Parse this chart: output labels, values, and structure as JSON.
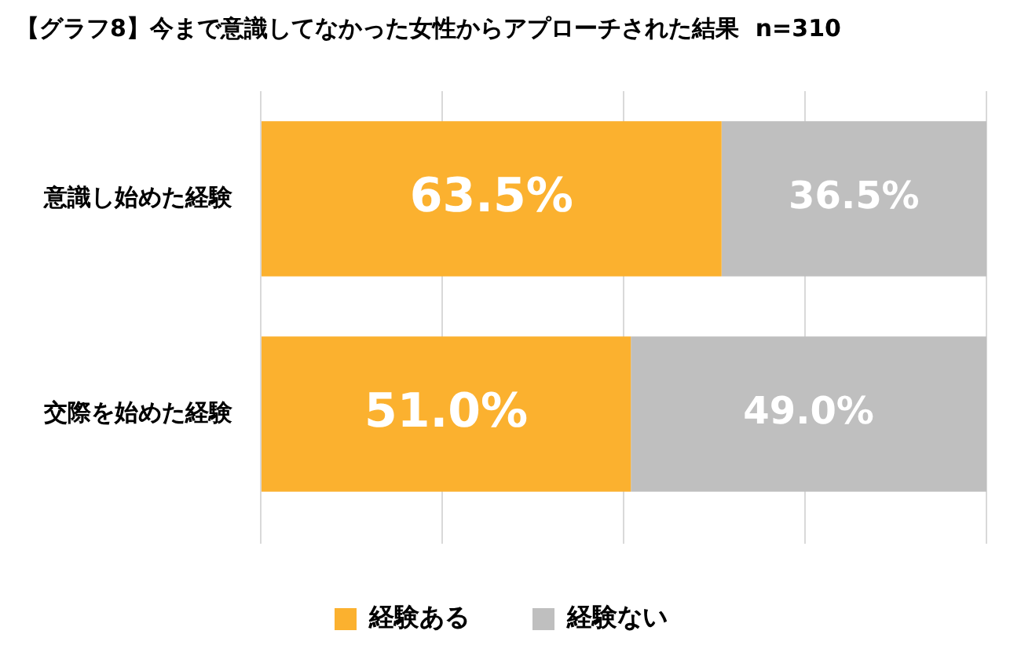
{
  "chart_data": {
    "type": "bar",
    "orientation": "horizontal",
    "stacked": true,
    "title": "【グラフ8】今まで意識してなかった女性からアプローチされた結果  n=310",
    "categories": [
      "意識し始めた経験",
      "交際を始めた経験"
    ],
    "series": [
      {
        "name": "経験ある",
        "color": "#fbb12f",
        "values": [
          63.5,
          51.0
        ],
        "value_labels": [
          "63.5%",
          "51.0%"
        ]
      },
      {
        "name": "経験ない",
        "color": "#bfbfbf",
        "values": [
          36.5,
          49.0
        ],
        "value_labels": [
          "36.5%",
          "49.0%"
        ]
      }
    ],
    "xlim": [
      0,
      100
    ],
    "xticks": [
      {
        "value": 0,
        "label": null
      },
      {
        "value": 25,
        "label": null
      },
      {
        "value": 50,
        "label": null
      },
      {
        "value": 75,
        "label": null
      },
      {
        "value": 100,
        "label": null
      }
    ],
    "tick_labels": "y",
    "grid": "x",
    "legend": "bottom"
  }
}
